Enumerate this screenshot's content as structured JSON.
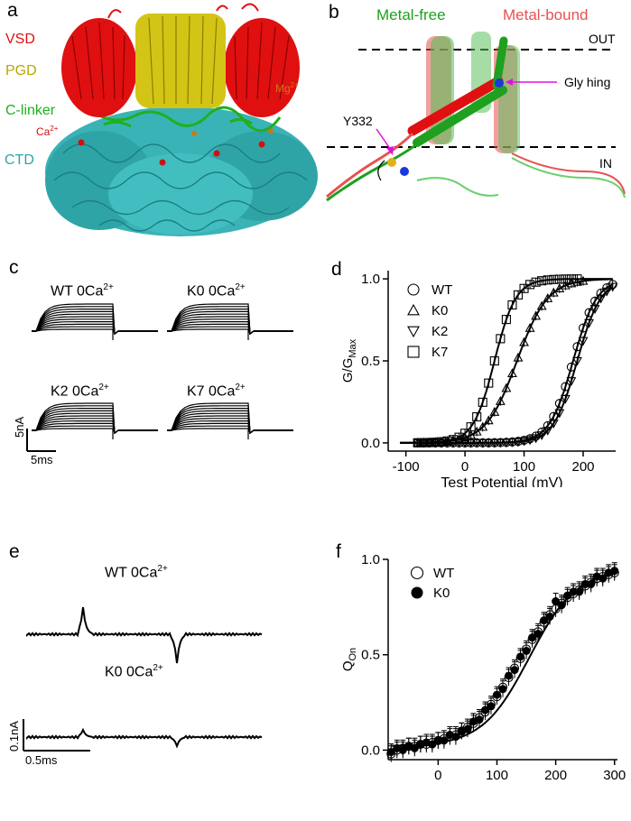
{
  "panels": {
    "a": {
      "letter": "a",
      "labels": [
        "VSD",
        "PGD",
        "C-linker",
        "CTD"
      ],
      "ion_labels": {
        "ca": "Ca",
        "ca_sup": "2+",
        "mg": "Mg",
        "mg_sup": "2+"
      },
      "colors": {
        "vsd": "#e01010",
        "pgd": "#d4c416",
        "clinker": "#1fb01f",
        "ctd": "#3ab3b6",
        "ca": "#d01010",
        "mg": "#c8781a"
      }
    },
    "b": {
      "letter": "b",
      "metal_free": "Metal-free",
      "metal_bound": "Metal-bound",
      "out": "OUT",
      "in": "IN",
      "gly": "Gly hing",
      "y332": "Y332",
      "colors": {
        "free": "#1fa01f",
        "bound": "#e85050",
        "arrow": "#e010e0"
      }
    },
    "c": {
      "letter": "c",
      "traces": [
        {
          "label": "WT 0Ca",
          "sup": "2+"
        },
        {
          "label": "K0 0Ca",
          "sup": "2+"
        },
        {
          "label": "K2 0Ca",
          "sup": "2+"
        },
        {
          "label": "K7 0Ca",
          "sup": "2+"
        }
      ],
      "scale_y": "5nA",
      "scale_x": "5ms"
    },
    "e": {
      "letter": "e",
      "traces": [
        {
          "label": "WT 0Ca",
          "sup": "2+"
        },
        {
          "label": "K0 0Ca",
          "sup": "2+"
        }
      ],
      "scale_y": "0.1nA",
      "scale_x": "0.5ms"
    }
  },
  "chart_data": [
    {
      "panel": "d",
      "letter": "d",
      "type": "scatter",
      "xlabel": "Test Potential (mV)",
      "ylabel": "G/G",
      "ylabel_sub": "Max",
      "xlim": [
        -130,
        255
      ],
      "ylim": [
        -0.05,
        1.05
      ],
      "xticks": [
        -100,
        0,
        100,
        200
      ],
      "xtick_labels": [
        "-100",
        "0",
        "100",
        "200"
      ],
      "yticks": [
        0.0,
        0.5,
        1.0
      ],
      "ytick_labels": [
        "0.0",
        "0.5",
        "1.0"
      ],
      "legend_position": "top-left",
      "series": [
        {
          "name": "WT",
          "marker": "circle",
          "v_half": 183,
          "slope": 20,
          "x": [
            -80,
            -70,
            -60,
            -50,
            -40,
            -30,
            -20,
            -10,
            0,
            10,
            20,
            30,
            40,
            50,
            60,
            70,
            80,
            90,
            100,
            110,
            120,
            130,
            140,
            150,
            160,
            170,
            180,
            190,
            200,
            210,
            220,
            230,
            240,
            250
          ]
        },
        {
          "name": "K0",
          "marker": "triangle-up",
          "v_half": 88,
          "slope": 26,
          "x": [
            -80,
            -70,
            -60,
            -50,
            -40,
            -30,
            -20,
            -10,
            0,
            10,
            20,
            30,
            40,
            50,
            60,
            70,
            80,
            90,
            100,
            110,
            120,
            130,
            140,
            150,
            160,
            170,
            180,
            190,
            200
          ]
        },
        {
          "name": "K2",
          "marker": "triangle-down",
          "v_half": 190,
          "slope": 20,
          "x": [
            -80,
            -70,
            -60,
            -50,
            -40,
            -30,
            -20,
            -10,
            0,
            10,
            20,
            30,
            40,
            50,
            60,
            70,
            80,
            90,
            100,
            110,
            120,
            130,
            140,
            150,
            160,
            170,
            180,
            190,
            200,
            210,
            220,
            230,
            240,
            250
          ]
        },
        {
          "name": "K7",
          "marker": "square",
          "v_half": 50,
          "slope": 18,
          "x": [
            -80,
            -70,
            -60,
            -50,
            -40,
            -30,
            -20,
            -10,
            0,
            10,
            20,
            30,
            40,
            50,
            60,
            70,
            80,
            90,
            100,
            110,
            120,
            130,
            140,
            150,
            160,
            170,
            180,
            190
          ]
        }
      ]
    },
    {
      "panel": "f",
      "letter": "f",
      "type": "scatter",
      "xlabel": "Test Potential (mV)",
      "ylabel": "Q",
      "ylabel_sub": "On",
      "xlim": [
        -85,
        305
      ],
      "ylim": [
        -0.05,
        1.0
      ],
      "xticks": [
        0,
        100,
        200,
        300
      ],
      "xtick_labels": [
        "0",
        "100",
        "200",
        "300"
      ],
      "yticks": [
        0.0,
        0.5,
        1.0
      ],
      "ytick_labels": [
        "0.0",
        "0.5",
        "1.0"
      ],
      "legend_position": "top-left",
      "series": [
        {
          "name": "WT",
          "marker": "circle-open",
          "x": [
            -80,
            -70,
            -60,
            -50,
            -40,
            -30,
            -20,
            -10,
            0,
            10,
            20,
            30,
            40,
            50,
            60,
            70,
            80,
            90,
            100,
            110,
            120,
            130,
            140,
            150,
            160,
            170,
            180,
            190,
            200,
            210,
            220,
            230,
            240,
            250,
            260,
            270,
            280,
            290,
            300
          ],
          "y": [
            -0.02,
            0.0,
            0.01,
            0.02,
            0.02,
            0.03,
            0.03,
            0.04,
            0.05,
            0.06,
            0.07,
            0.08,
            0.1,
            0.12,
            0.14,
            0.17,
            0.2,
            0.24,
            0.28,
            0.33,
            0.38,
            0.43,
            0.48,
            0.53,
            0.58,
            0.62,
            0.67,
            0.71,
            0.74,
            0.77,
            0.8,
            0.82,
            0.84,
            0.86,
            0.88,
            0.9,
            0.91,
            0.92,
            0.93
          ]
        },
        {
          "name": "K0",
          "marker": "circle-filled",
          "x": [
            -80,
            -70,
            -60,
            -50,
            -40,
            -30,
            -20,
            -10,
            0,
            10,
            20,
            30,
            40,
            50,
            60,
            70,
            80,
            90,
            100,
            110,
            120,
            130,
            140,
            150,
            160,
            170,
            180,
            190,
            200,
            210,
            220,
            230,
            240,
            250,
            260,
            270,
            280,
            290,
            300
          ],
          "y": [
            -0.01,
            0.01,
            0.0,
            0.02,
            0.01,
            0.03,
            0.04,
            0.03,
            0.05,
            0.05,
            0.08,
            0.07,
            0.1,
            0.11,
            0.15,
            0.16,
            0.21,
            0.23,
            0.29,
            0.32,
            0.39,
            0.42,
            0.49,
            0.52,
            0.59,
            0.61,
            0.68,
            0.7,
            0.78,
            0.76,
            0.81,
            0.83,
            0.83,
            0.87,
            0.87,
            0.91,
            0.9,
            0.93,
            0.94
          ]
        }
      ]
    }
  ]
}
